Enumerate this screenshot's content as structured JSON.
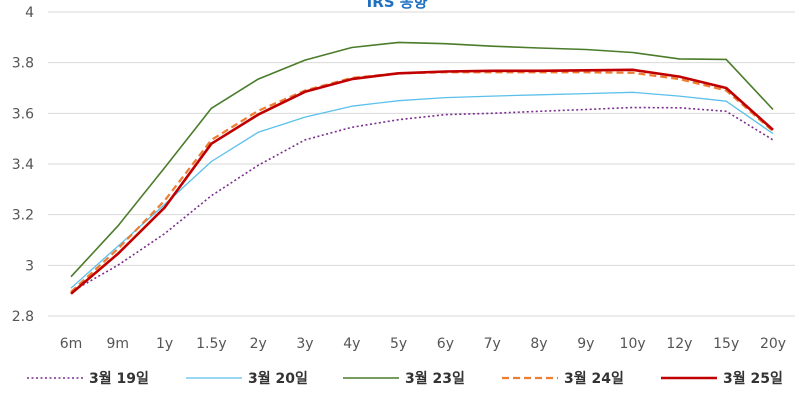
{
  "chart_data": {
    "type": "line",
    "title": "IRS 동향",
    "categories": [
      "6m",
      "9m",
      "1y",
      "1.5y",
      "2y",
      "3y",
      "4y",
      "5y",
      "6y",
      "7y",
      "8y",
      "9y",
      "10y",
      "12y",
      "15y",
      "20y"
    ],
    "ylim": [
      2.8,
      4
    ],
    "yticks": [
      "2.8",
      "3",
      "3.2",
      "3.4",
      "3.6",
      "3.8",
      "4"
    ],
    "grid": true,
    "legend_position": "bottom",
    "series": [
      {
        "name": "3월 19일",
        "color": "#7b2d8e",
        "style": "dotted",
        "values": [
          2.895,
          3.0,
          3.125,
          3.275,
          3.395,
          3.495,
          3.545,
          3.575,
          3.595,
          3.6,
          3.608,
          3.615,
          3.623,
          3.622,
          3.608,
          3.495
        ]
      },
      {
        "name": "3월 20일",
        "color": "#5bc0eb",
        "style": "solid-thin",
        "values": [
          2.91,
          3.075,
          3.24,
          3.41,
          3.525,
          3.585,
          3.628,
          3.65,
          3.662,
          3.668,
          3.673,
          3.678,
          3.683,
          3.668,
          3.648,
          3.52
        ]
      },
      {
        "name": "3월 23일",
        "color": "#4a7c2a",
        "style": "solid",
        "values": [
          2.955,
          3.155,
          3.385,
          3.62,
          3.735,
          3.81,
          3.86,
          3.88,
          3.875,
          3.865,
          3.858,
          3.852,
          3.84,
          3.815,
          3.813,
          3.615
        ]
      },
      {
        "name": "3월 24일",
        "color": "#ed7d31",
        "style": "dashed",
        "values": [
          2.895,
          3.065,
          3.255,
          3.495,
          3.61,
          3.69,
          3.74,
          3.758,
          3.762,
          3.762,
          3.762,
          3.762,
          3.76,
          3.735,
          3.69,
          3.53
        ]
      },
      {
        "name": "3월 25일",
        "color": "#c00000",
        "style": "solid-thick",
        "values": [
          2.888,
          3.045,
          3.228,
          3.48,
          3.595,
          3.685,
          3.735,
          3.758,
          3.765,
          3.768,
          3.768,
          3.77,
          3.772,
          3.745,
          3.7,
          3.535
        ]
      }
    ]
  }
}
